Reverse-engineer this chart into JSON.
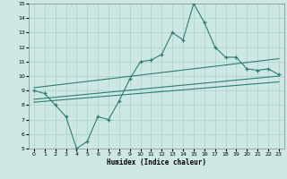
{
  "title": "",
  "xlabel": "Humidex (Indice chaleur)",
  "bg_color": "#cde8e4",
  "line_color": "#2e7d72",
  "grid_color": "#afd4ce",
  "ylim": [
    5,
    15
  ],
  "xlim": [
    -0.5,
    23.5
  ],
  "yticks": [
    5,
    6,
    7,
    8,
    9,
    10,
    11,
    12,
    13,
    14,
    15
  ],
  "xticks": [
    0,
    1,
    2,
    3,
    4,
    5,
    6,
    7,
    8,
    9,
    10,
    11,
    12,
    13,
    14,
    15,
    16,
    17,
    18,
    19,
    20,
    21,
    22,
    23
  ],
  "main_x": [
    0,
    1,
    2,
    3,
    4,
    5,
    6,
    7,
    8,
    9,
    10,
    11,
    12,
    13,
    14,
    15,
    16,
    17,
    18,
    19,
    20,
    21,
    22,
    23
  ],
  "main_y": [
    9.0,
    8.8,
    8.0,
    7.2,
    5.0,
    5.5,
    7.2,
    7.0,
    8.3,
    9.8,
    11.0,
    11.1,
    11.5,
    13.0,
    12.5,
    15.0,
    13.7,
    12.0,
    11.3,
    11.3,
    10.5,
    10.4,
    10.5,
    10.1
  ],
  "upper_line_x": [
    0,
    23
  ],
  "upper_line_y": [
    9.2,
    11.2
  ],
  "lower_line_x": [
    0,
    23
  ],
  "lower_line_y": [
    8.4,
    10.0
  ],
  "mid_line_x": [
    0,
    23
  ],
  "mid_line_y": [
    8.2,
    9.6
  ]
}
